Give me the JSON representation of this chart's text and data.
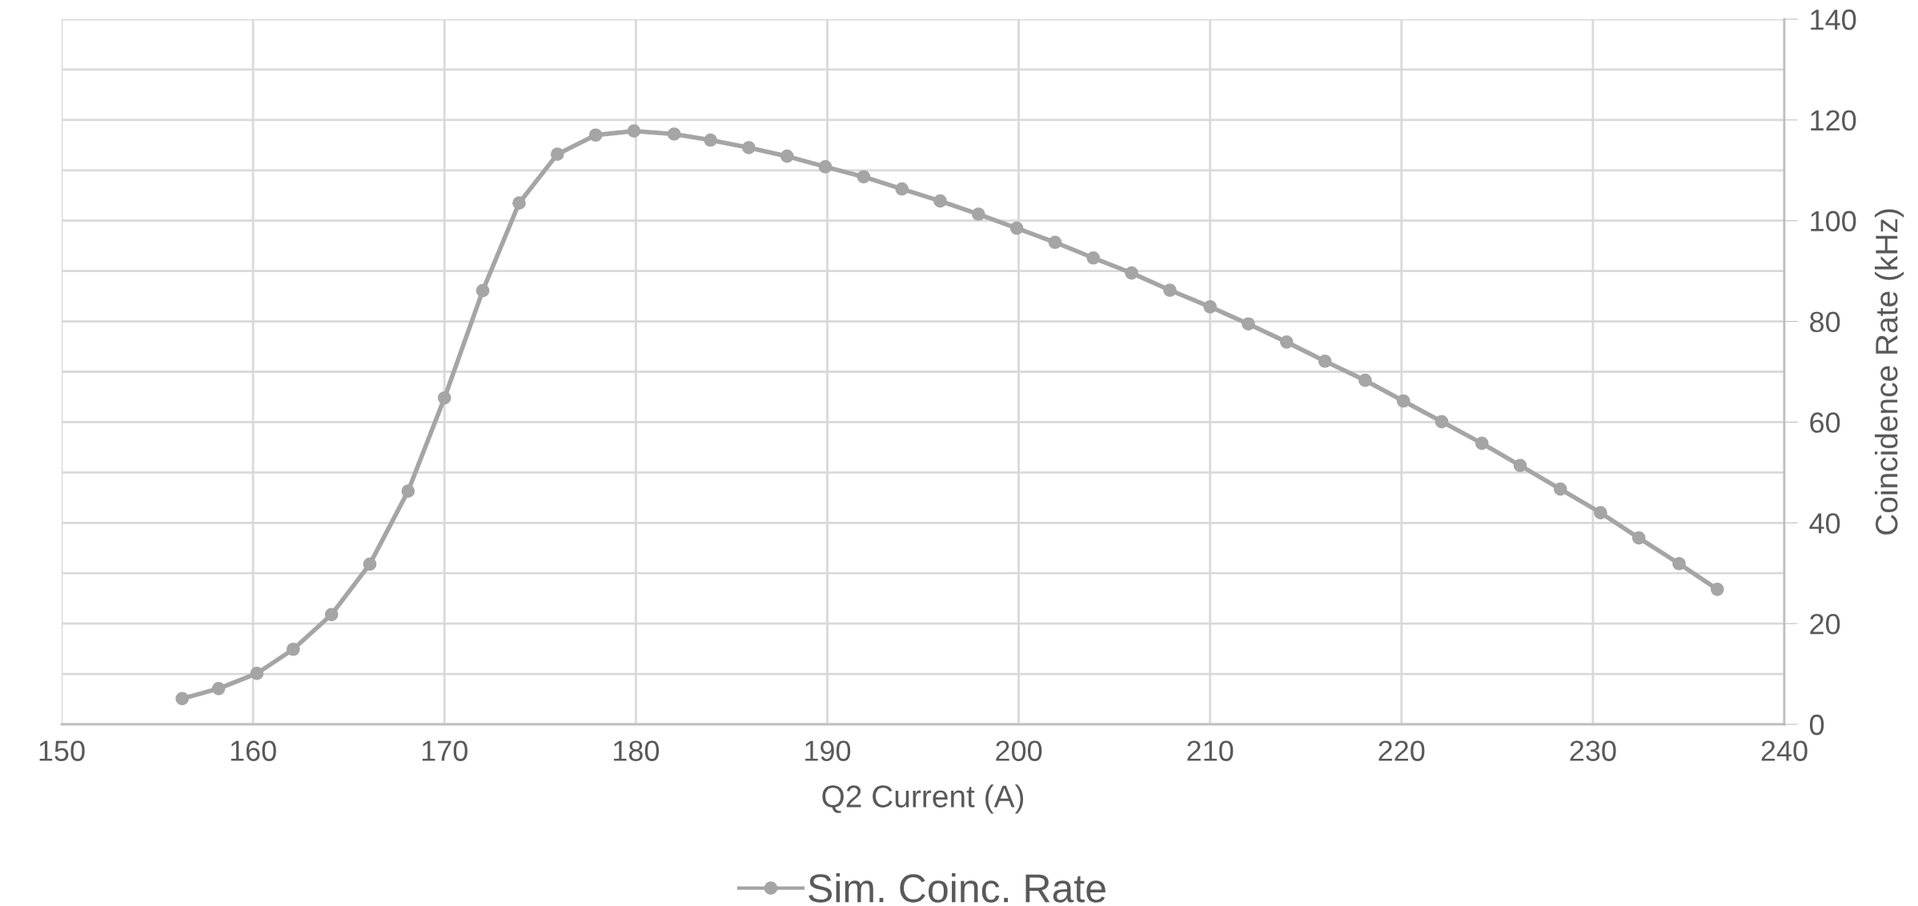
{
  "chart_data": {
    "type": "line",
    "xlabel": "Q2 Current (A)",
    "ylabel": "Coincidence Rate (kHz)",
    "xlim": [
      150,
      240
    ],
    "xticks": [
      150,
      160,
      170,
      180,
      190,
      200,
      210,
      220,
      230,
      240
    ],
    "ylim": [
      0,
      140
    ],
    "yticks": [
      0,
      {
        "value": 10,
        "label": null
      },
      20,
      {
        "value": 30,
        "label": null
      },
      40,
      {
        "value": 50,
        "label": null
      },
      60,
      {
        "value": 70,
        "label": null
      },
      80,
      {
        "value": 90,
        "label": null
      },
      100,
      {
        "value": 110,
        "label": null
      },
      120,
      {
        "value": 130,
        "label": null
      },
      140
    ],
    "grid": true,
    "legend": "bottom",
    "marker": "circle",
    "line_style": "solid",
    "series": [
      {
        "name": "Sim. Coinc. Rate",
        "color": "#a5a5a5",
        "x": [
          156.3,
          158.2,
          160.2,
          162.1,
          164.1,
          166.1,
          168.1,
          170.0,
          172.0,
          173.9,
          175.9,
          177.9,
          179.9,
          182.0,
          183.9,
          185.9,
          187.9,
          189.9,
          191.9,
          193.9,
          195.9,
          197.9,
          199.9,
          201.9,
          203.9,
          205.9,
          207.9,
          210.0,
          212.0,
          214.0,
          216.0,
          218.1,
          220.1,
          222.1,
          224.2,
          226.2,
          228.3,
          230.4,
          232.4,
          234.5,
          236.5
        ],
        "values": [
          5.1,
          7.1,
          10.1,
          14.9,
          21.8,
          31.8,
          46.3,
          64.8,
          86.1,
          103.5,
          113.2,
          117.0,
          117.8,
          117.2,
          116.0,
          114.5,
          112.8,
          110.7,
          108.7,
          106.3,
          103.9,
          101.3,
          98.5,
          95.7,
          92.6,
          89.6,
          86.2,
          82.9,
          79.5,
          75.9,
          72.1,
          68.3,
          64.2,
          60.1,
          55.8,
          51.4,
          46.7,
          42.0,
          37.0,
          31.9,
          26.8
        ]
      }
    ]
  }
}
